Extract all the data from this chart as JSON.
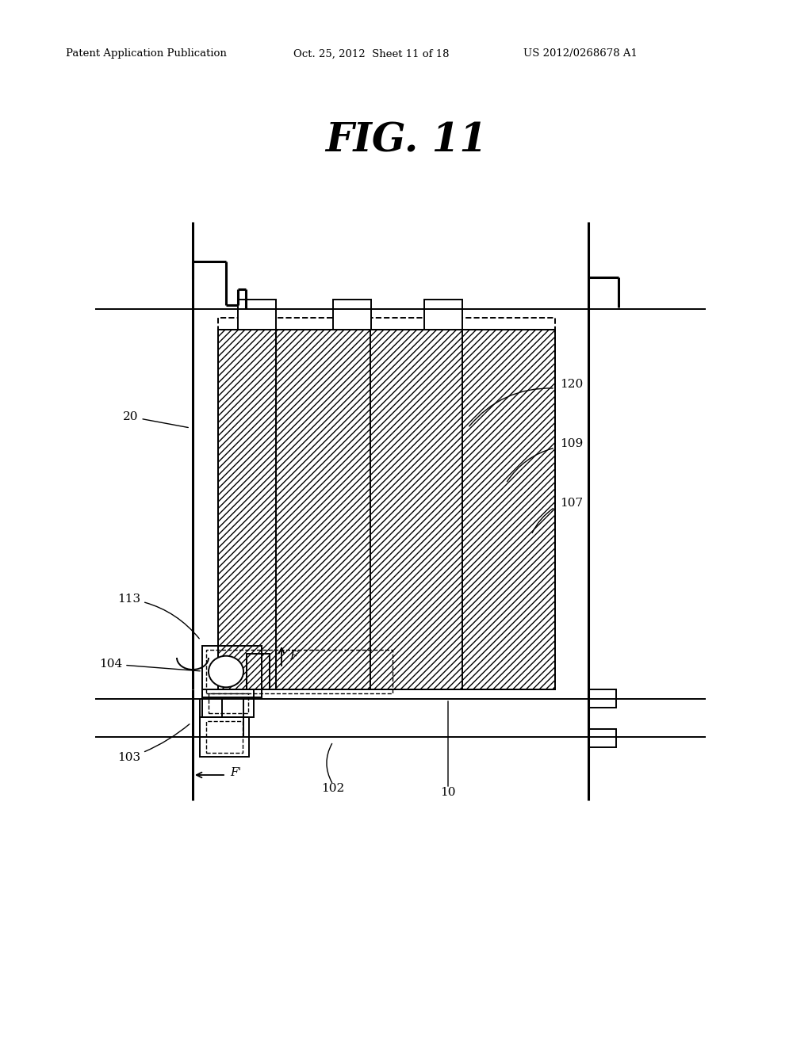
{
  "bg_color": "#ffffff",
  "line_color": "#000000",
  "title": "FIG. 11",
  "header_left": "Patent Application Publication",
  "header_mid": "Oct. 25, 2012  Sheet 11 of 18",
  "header_right": "US 2012/0268678 A1"
}
